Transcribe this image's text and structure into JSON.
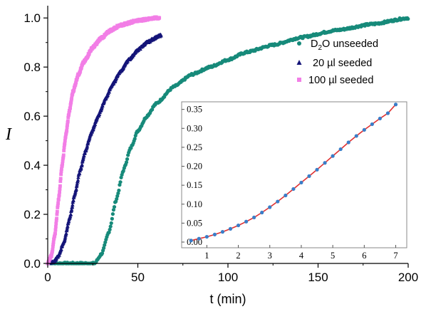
{
  "chart_data": [
    {
      "type": "scatter",
      "title": "",
      "xlabel": "t (min)",
      "ylabel": "I",
      "xlim": [
        0,
        200
      ],
      "ylim": [
        0,
        1.05
      ],
      "xticks": [
        "0",
        "50",
        "100",
        "150",
        "200"
      ],
      "yticks": [
        "0.0",
        "0.2",
        "0.4",
        "0.6",
        "0.8",
        "1.0"
      ],
      "legend": "top-right",
      "colors": {
        "d2o": "#178a7a",
        "seeded20": "#141478",
        "seeded100": "#f27ee6"
      },
      "series": [
        {
          "name": "D₂O unseeded",
          "legend_main": "D",
          "legend_sub": "2",
          "legend_rest": "O unseeded",
          "marker": "circle",
          "model": {
            "type": "seeded-exponential",
            "lag": 26,
            "curve": [
              26,
              0.0,
              30,
              0.04,
              34,
              0.13,
              38,
              0.26,
              42,
              0.38,
              46,
              0.47,
              50,
              0.54,
              55,
              0.6,
              60,
              0.65,
              70,
              0.72,
              80,
              0.77,
              90,
              0.8,
              100,
              0.83,
              110,
              0.86,
              125,
              0.89,
              140,
              0.92,
              160,
              0.95,
              180,
              0.975,
              200,
              1.0
            ]
          },
          "x_range": [
            0,
            200
          ]
        },
        {
          "name": "20 µl seeded",
          "marker": "triangle",
          "model": {
            "curve": [
              0,
              0.0,
              3,
              0.005,
              6,
              0.03,
              9,
              0.09,
              12,
              0.18,
              15,
              0.28,
              18,
              0.38,
              21,
              0.46,
              24,
              0.53,
              28,
              0.6,
              32,
              0.67,
              36,
              0.73,
              40,
              0.78,
              45,
              0.83,
              50,
              0.87,
              55,
              0.9,
              60,
              0.92,
              63,
              0.93
            ]
          },
          "x_range": [
            0,
            63
          ]
        },
        {
          "name": "100 µl seeded",
          "marker": "square",
          "model": {
            "curve": [
              0,
              0.0,
              2,
              0.03,
              4,
              0.12,
              6,
              0.26,
              8,
              0.4,
              10,
              0.52,
              12,
              0.62,
              14,
              0.7,
              17,
              0.77,
              20,
              0.82,
              25,
              0.88,
              30,
              0.92,
              35,
              0.95,
              40,
              0.97,
              50,
              0.99,
              60,
              1.0
            ]
          },
          "x_range": [
            0,
            62
          ]
        }
      ]
    },
    {
      "type": "scatter",
      "title": "",
      "xlim": [
        0.2,
        7.35
      ],
      "ylim": [
        -0.015,
        0.37
      ],
      "xticks": [
        "1",
        "2",
        "3",
        "4",
        "5",
        "6",
        "7"
      ],
      "yticks": [
        "0.00",
        "0.05",
        "0.10",
        "0.15",
        "0.20",
        "0.25",
        "0.30",
        "0.35"
      ],
      "colors": {
        "points": "#3a7ec8",
        "fit": "#e03030"
      },
      "series": [
        {
          "x": [
            0.5,
            0.75,
            1.0,
            1.25,
            1.5,
            1.75,
            2.0,
            2.25,
            2.5,
            2.75,
            3.0,
            3.25,
            3.5,
            3.75,
            4.0,
            4.25,
            4.5,
            4.75,
            5.0,
            5.25,
            5.5,
            5.75,
            6.0,
            6.25,
            6.5,
            6.75,
            7.0
          ],
          "y": [
            0.004,
            0.009,
            0.014,
            0.02,
            0.027,
            0.035,
            0.044,
            0.054,
            0.065,
            0.078,
            0.092,
            0.107,
            0.123,
            0.14,
            0.157,
            0.174,
            0.191,
            0.209,
            0.227,
            0.245,
            0.263,
            0.28,
            0.296,
            0.311,
            0.326,
            0.34,
            0.363
          ]
        }
      ]
    }
  ]
}
